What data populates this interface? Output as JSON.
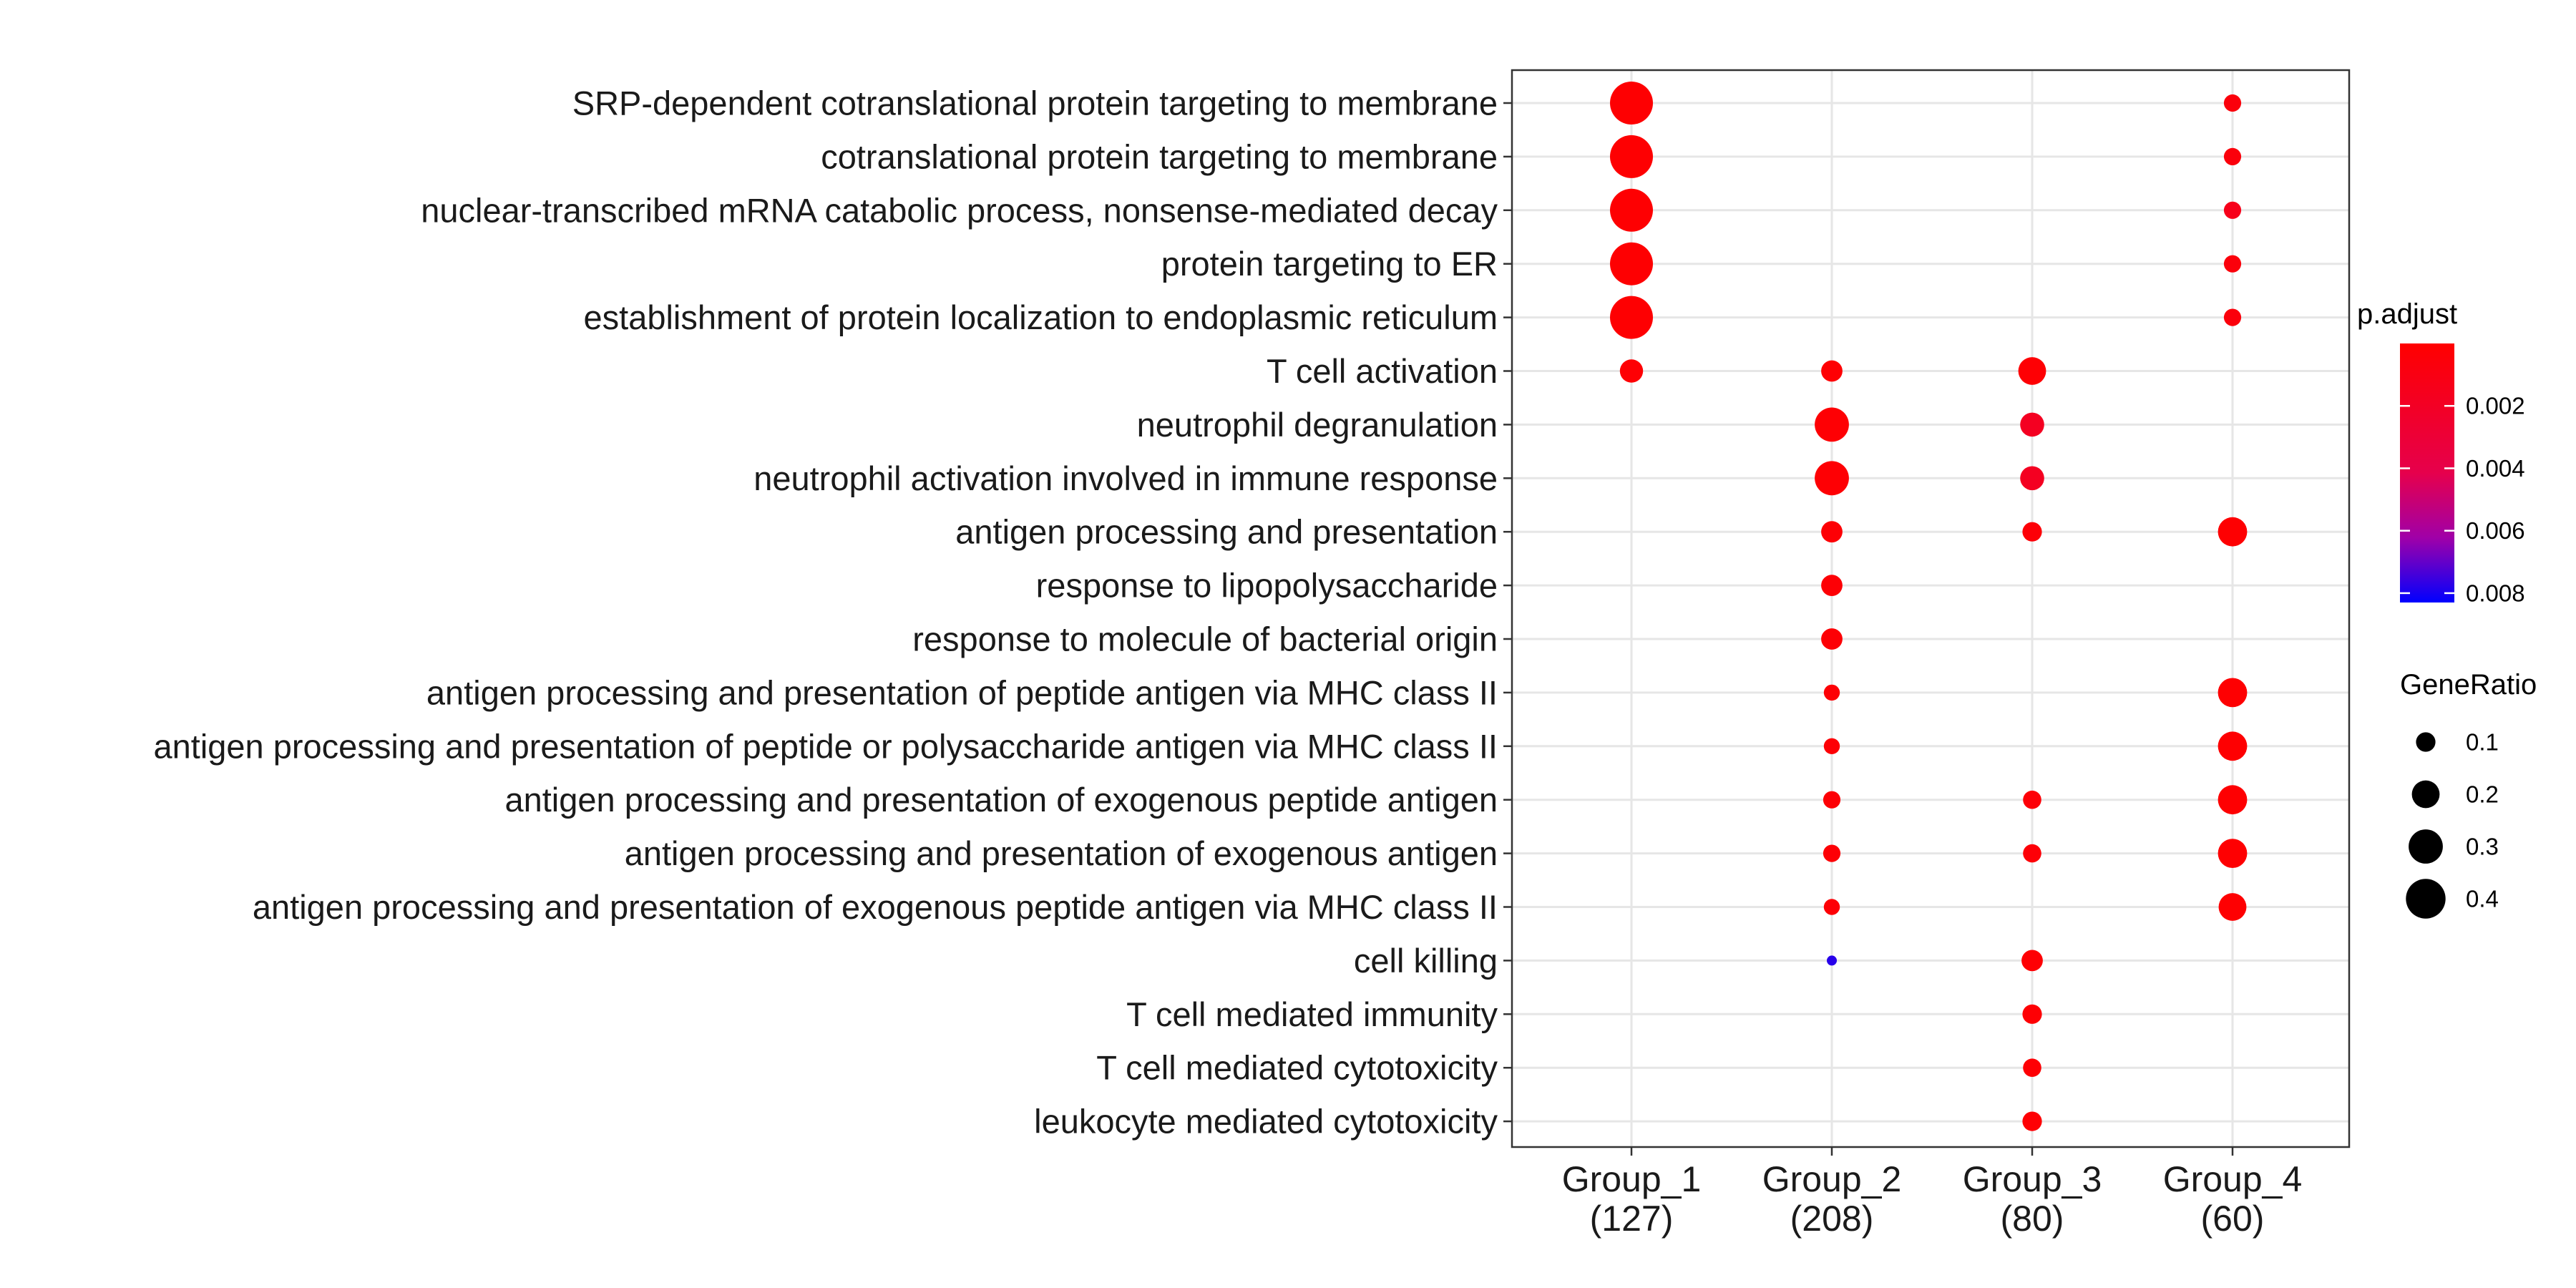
{
  "chart_data": {
    "type": "scatter",
    "title": "",
    "xlabel": "",
    "ylabel": "",
    "grid": true,
    "legend_position": "right",
    "groups": [
      {
        "name": "Group_1",
        "count": "(127)"
      },
      {
        "name": "Group_2",
        "count": "(208)"
      },
      {
        "name": "Group_3",
        "count": "(80)"
      },
      {
        "name": "Group_4",
        "count": "(60)"
      }
    ],
    "terms": [
      "SRP-dependent cotranslational protein targeting to membrane",
      "cotranslational protein targeting to membrane",
      "nuclear-transcribed mRNA catabolic process, nonsense-mediated decay",
      "protein targeting to ER",
      "establishment of protein localization to endoplasmic reticulum",
      "T cell activation",
      "neutrophil degranulation",
      "neutrophil activation involved in immune response",
      "antigen processing and presentation",
      "response to lipopolysaccharide",
      "response to molecule of bacterial origin",
      "antigen processing and presentation of peptide antigen via MHC class II",
      "antigen processing and presentation of peptide or polysaccharide antigen via MHC class II",
      "antigen processing and presentation of exogenous peptide antigen",
      "antigen processing and presentation of exogenous antigen",
      "antigen processing and presentation of exogenous peptide antigen via MHC class II",
      "cell killing",
      "T cell mediated immunity",
      "T cell mediated cytotoxicity",
      "leukocyte mediated cytotoxicity"
    ],
    "points": [
      {
        "group": "Group_1",
        "term": "SRP-dependent cotranslational protein targeting to membrane",
        "gene_ratio": 0.47,
        "p_adjust": 0.0001
      },
      {
        "group": "Group_1",
        "term": "cotranslational protein targeting to membrane",
        "gene_ratio": 0.47,
        "p_adjust": 0.0001
      },
      {
        "group": "Group_1",
        "term": "nuclear-transcribed mRNA catabolic process, nonsense-mediated decay",
        "gene_ratio": 0.47,
        "p_adjust": 0.0001
      },
      {
        "group": "Group_1",
        "term": "protein targeting to ER",
        "gene_ratio": 0.47,
        "p_adjust": 0.0001
      },
      {
        "group": "Group_1",
        "term": "establishment of protein localization to endoplasmic reticulum",
        "gene_ratio": 0.47,
        "p_adjust": 0.0001
      },
      {
        "group": "Group_1",
        "term": "T cell activation",
        "gene_ratio": 0.14,
        "p_adjust": 0.0002
      },
      {
        "group": "Group_2",
        "term": "T cell activation",
        "gene_ratio": 0.12,
        "p_adjust": 0.0002
      },
      {
        "group": "Group_2",
        "term": "neutrophil degranulation",
        "gene_ratio": 0.3,
        "p_adjust": 0.0002
      },
      {
        "group": "Group_2",
        "term": "neutrophil activation involved in immune response",
        "gene_ratio": 0.3,
        "p_adjust": 0.0002
      },
      {
        "group": "Group_2",
        "term": "antigen processing and presentation",
        "gene_ratio": 0.12,
        "p_adjust": 0.0003
      },
      {
        "group": "Group_2",
        "term": "response to lipopolysaccharide",
        "gene_ratio": 0.12,
        "p_adjust": 0.0003
      },
      {
        "group": "Group_2",
        "term": "response to molecule of bacterial origin",
        "gene_ratio": 0.12,
        "p_adjust": 0.0003
      },
      {
        "group": "Group_2",
        "term": "antigen processing and presentation of peptide antigen via MHC class II",
        "gene_ratio": 0.07,
        "p_adjust": 0.0003
      },
      {
        "group": "Group_2",
        "term": "antigen processing and presentation of peptide or polysaccharide antigen via MHC class II",
        "gene_ratio": 0.07,
        "p_adjust": 0.0003
      },
      {
        "group": "Group_2",
        "term": "antigen processing and presentation of exogenous peptide antigen",
        "gene_ratio": 0.08,
        "p_adjust": 0.0003
      },
      {
        "group": "Group_2",
        "term": "antigen processing and presentation of exogenous antigen",
        "gene_ratio": 0.08,
        "p_adjust": 0.0003
      },
      {
        "group": "Group_2",
        "term": "antigen processing and presentation of exogenous peptide antigen via MHC class II",
        "gene_ratio": 0.07,
        "p_adjust": 0.0003
      },
      {
        "group": "Group_2",
        "term": "cell killing",
        "gene_ratio": 0.03,
        "p_adjust": 0.0078
      },
      {
        "group": "Group_3",
        "term": "T cell activation",
        "gene_ratio": 0.2,
        "p_adjust": 0.0002
      },
      {
        "group": "Group_3",
        "term": "neutrophil degranulation",
        "gene_ratio": 0.15,
        "p_adjust": 0.0018
      },
      {
        "group": "Group_3",
        "term": "neutrophil activation involved in immune response",
        "gene_ratio": 0.15,
        "p_adjust": 0.0018
      },
      {
        "group": "Group_3",
        "term": "antigen processing and presentation",
        "gene_ratio": 0.1,
        "p_adjust": 0.0004
      },
      {
        "group": "Group_3",
        "term": "antigen processing and presentation of exogenous peptide antigen",
        "gene_ratio": 0.09,
        "p_adjust": 0.0004
      },
      {
        "group": "Group_3",
        "term": "antigen processing and presentation of exogenous antigen",
        "gene_ratio": 0.09,
        "p_adjust": 0.0004
      },
      {
        "group": "Group_3",
        "term": "cell killing",
        "gene_ratio": 0.12,
        "p_adjust": 0.0002
      },
      {
        "group": "Group_3",
        "term": "T cell mediated immunity",
        "gene_ratio": 0.1,
        "p_adjust": 0.0002
      },
      {
        "group": "Group_3",
        "term": "T cell mediated cytotoxicity",
        "gene_ratio": 0.09,
        "p_adjust": 0.0002
      },
      {
        "group": "Group_3",
        "term": "leukocyte mediated cytotoxicity",
        "gene_ratio": 0.1,
        "p_adjust": 0.0002
      },
      {
        "group": "Group_4",
        "term": "SRP-dependent cotranslational protein targeting to membrane",
        "gene_ratio": 0.08,
        "p_adjust": 0.0006
      },
      {
        "group": "Group_4",
        "term": "cotranslational protein targeting to membrane",
        "gene_ratio": 0.08,
        "p_adjust": 0.0006
      },
      {
        "group": "Group_4",
        "term": "nuclear-transcribed mRNA catabolic process, nonsense-mediated decay",
        "gene_ratio": 0.08,
        "p_adjust": 0.0014
      },
      {
        "group": "Group_4",
        "term": "protein targeting to ER",
        "gene_ratio": 0.08,
        "p_adjust": 0.0006
      },
      {
        "group": "Group_4",
        "term": "establishment of protein localization to endoplasmic reticulum",
        "gene_ratio": 0.08,
        "p_adjust": 0.0006
      },
      {
        "group": "Group_4",
        "term": "antigen processing and presentation",
        "gene_ratio": 0.22,
        "p_adjust": 0.0001
      },
      {
        "group": "Group_4",
        "term": "antigen processing and presentation of peptide antigen via MHC class II",
        "gene_ratio": 0.22,
        "p_adjust": 0.0001
      },
      {
        "group": "Group_4",
        "term": "antigen processing and presentation of peptide or polysaccharide antigen via MHC class II",
        "gene_ratio": 0.22,
        "p_adjust": 0.0001
      },
      {
        "group": "Group_4",
        "term": "antigen processing and presentation of exogenous peptide antigen",
        "gene_ratio": 0.22,
        "p_adjust": 0.0001
      },
      {
        "group": "Group_4",
        "term": "antigen processing and presentation of exogenous antigen",
        "gene_ratio": 0.22,
        "p_adjust": 0.0001
      },
      {
        "group": "Group_4",
        "term": "antigen processing and presentation of exogenous peptide antigen via MHC class II",
        "gene_ratio": 0.2,
        "p_adjust": 0.0001
      }
    ],
    "color_legend": {
      "title": "p.adjust",
      "ticks": [
        0.002,
        0.004,
        0.006,
        0.008
      ],
      "tick_labels": [
        "0.002",
        "0.004",
        "0.006",
        "0.008"
      ],
      "range": [
        0.0,
        0.0083
      ],
      "low_color": "#ff0000",
      "high_color": "#0000ff"
    },
    "size_legend": {
      "title": "GeneRatio",
      "values": [
        0.1,
        0.2,
        0.3,
        0.4
      ],
      "labels": [
        "0.1",
        "0.2",
        "0.3",
        "0.4"
      ],
      "range": [
        0.03,
        0.47
      ]
    }
  }
}
